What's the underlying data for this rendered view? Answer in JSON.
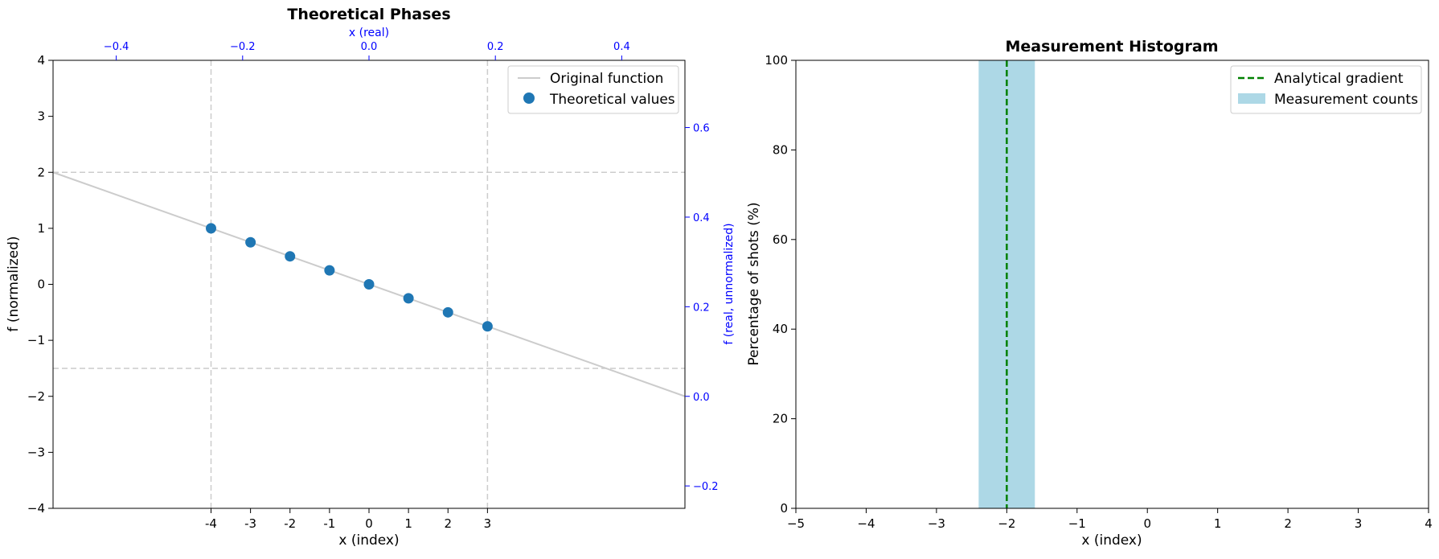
{
  "chart_data": [
    {
      "type": "scatter",
      "title": "Theoretical Phases",
      "xlabel": "x (index)",
      "ylabel": "f (normalized)",
      "xlim": [
        -8,
        8
      ],
      "ylim": [
        -4,
        4
      ],
      "x_ticks": [
        -4,
        -3,
        -2,
        -1,
        0,
        1,
        2,
        3
      ],
      "x_tick_labels": [
        "-4",
        "-3",
        "-2",
        "-1",
        "0",
        "1",
        "2",
        "3"
      ],
      "y_ticks": [
        -4,
        -3,
        -2,
        -1,
        0,
        1,
        2,
        3,
        4
      ],
      "y_tick_labels": [
        "−4",
        "−3",
        "−2",
        "−1",
        "0",
        "1",
        "2",
        "3",
        "4"
      ],
      "top_axis": {
        "label": "x (real)",
        "color": "#0000ff",
        "ticks": [
          -0.4,
          -0.2,
          0.0,
          0.2,
          0.4
        ],
        "tick_labels": [
          "−0.4",
          "−0.2",
          "0.0",
          "0.2",
          "0.4"
        ],
        "tick_positions_x_index": [
          -6.4,
          -3.2,
          0,
          3.2,
          6.4
        ]
      },
      "right_axis": {
        "label": "f (real, unnormalized)",
        "color": "#0000ff",
        "ticks": [
          -0.2,
          0.0,
          0.2,
          0.4,
          0.6
        ],
        "tick_labels": [
          "−0.2",
          "0.0",
          "0.2",
          "0.4",
          "0.6"
        ],
        "tick_positions_y_norm": [
          -3.6,
          -2.0,
          -0.4,
          1.2,
          2.8
        ]
      },
      "reference_lines": {
        "vertical_x": [
          -4,
          3
        ],
        "horizontal_y": [
          2,
          -1.5
        ],
        "color": "#cccccc"
      },
      "series": [
        {
          "name": "Original function",
          "kind": "line",
          "color": "#cccccc",
          "x": [
            -8,
            8
          ],
          "y": [
            2,
            -2
          ]
        },
        {
          "name": "Theoretical values",
          "kind": "scatter",
          "color": "#1f77b4",
          "x": [
            -4,
            -3,
            -2,
            -1,
            0,
            1,
            2,
            3
          ],
          "y": [
            1.0,
            0.75,
            0.5,
            0.25,
            0.0,
            -0.25,
            -0.5,
            -0.75
          ]
        }
      ],
      "legend": {
        "placement": "top-right",
        "entries": [
          "Original function",
          "Theoretical values"
        ]
      },
      "grid": false
    },
    {
      "type": "bar",
      "title": "Measurement Histogram",
      "xlabel": "x (index)",
      "ylabel": "Percentage of shots (%)",
      "xlim": [
        -5,
        4
      ],
      "ylim": [
        0,
        100
      ],
      "x_ticks": [
        -5,
        -4,
        -3,
        -2,
        -1,
        0,
        1,
        2,
        3,
        4
      ],
      "x_tick_labels": [
        "−5",
        "−4",
        "−3",
        "−2",
        "−1",
        "0",
        "1",
        "2",
        "3",
        "4"
      ],
      "y_ticks": [
        0,
        20,
        40,
        60,
        80,
        100
      ],
      "y_tick_labels": [
        "0",
        "20",
        "40",
        "60",
        "80",
        "100"
      ],
      "bars": [
        {
          "x": -2,
          "width": 0.8,
          "value": 100
        }
      ],
      "bar_color": "#add8e6",
      "vline": {
        "x": -2,
        "color": "#008000",
        "style": "dashed"
      },
      "series": [
        {
          "name": "Analytical gradient",
          "kind": "vline",
          "color": "#008000"
        },
        {
          "name": "Measurement counts",
          "kind": "bar",
          "color": "#add8e6"
        }
      ],
      "legend": {
        "placement": "top-right",
        "entries": [
          "Analytical gradient",
          "Measurement counts"
        ]
      },
      "grid": false
    }
  ]
}
